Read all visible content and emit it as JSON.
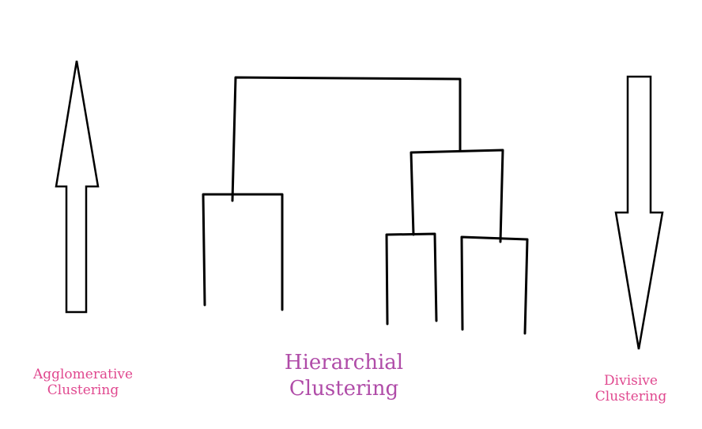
{
  "captions": {
    "agglomerative": {
      "line1": "Agglomerative",
      "line2": "Clustering"
    },
    "hierarchical": {
      "line1": "Hierarchial",
      "line2": "Clustering"
    },
    "divisive": {
      "line1": "Divisive",
      "line2": "Clustering"
    }
  },
  "colors": {
    "stroke": "#000000",
    "caption_small": "#e0488f",
    "caption_main": "#b04ca8"
  },
  "icons": {
    "up_arrow": "arrow-up-outline",
    "down_arrow": "arrow-down-outline"
  }
}
